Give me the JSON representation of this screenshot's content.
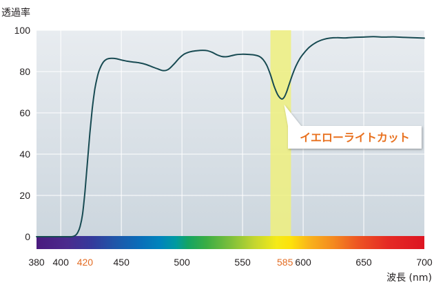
{
  "chart_data": {
    "type": "line",
    "ylabel": "透過率",
    "xlabel": "波長 (nm)",
    "xlim": [
      380,
      700
    ],
    "ylim": [
      0,
      100
    ],
    "x_ticks": [
      380,
      400,
      420,
      450,
      500,
      550,
      585,
      600,
      650,
      700
    ],
    "y_ticks": [
      0,
      20,
      40,
      60,
      80,
      100
    ],
    "highlighted_x_ticks": [
      420,
      585
    ],
    "grid": true,
    "x_gridlines": [
      400,
      450,
      500,
      550,
      600,
      650
    ],
    "y_gridlines": [
      20,
      40,
      60,
      80,
      100
    ],
    "x": [
      380,
      390,
      400,
      405,
      409,
      412,
      414,
      416,
      418,
      420,
      422,
      424,
      426,
      428,
      430,
      432,
      435,
      438,
      442,
      446,
      450,
      455,
      460,
      465,
      470,
      475,
      480,
      484,
      487,
      490,
      494,
      498,
      502,
      507,
      512,
      517,
      521,
      525,
      529,
      533,
      537,
      541,
      545,
      550,
      555,
      560,
      564,
      567,
      570,
      573,
      576,
      579,
      582,
      584,
      586,
      588,
      591,
      594,
      597,
      600,
      604,
      608,
      612,
      617,
      622,
      628,
      635,
      642,
      650,
      658,
      666,
      674,
      682,
      690,
      700
    ],
    "y": [
      0,
      0,
      0,
      0,
      0,
      0.6,
      2,
      5,
      11,
      22,
      36,
      50,
      62,
      71,
      77,
      81,
      84.5,
      86,
      86.4,
      86.2,
      85.6,
      85,
      84.6,
      84.2,
      83.5,
      82.4,
      81.3,
      80.5,
      80.6,
      81.6,
      84,
      86.6,
      88.5,
      89.6,
      90.1,
      90.3,
      90.1,
      89.3,
      88.1,
      87.3,
      87.2,
      87.7,
      88.2,
      88.4,
      88.3,
      88,
      87.3,
      85.8,
      83,
      78.5,
      73,
      68.8,
      66.8,
      67.3,
      69.6,
      73,
      78.2,
      82.6,
      86,
      88.5,
      91.2,
      93.1,
      94.5,
      95.6,
      96.2,
      96.4,
      96.3,
      96.6,
      96.7,
      96.9,
      96.7,
      96.8,
      96.6,
      96.4,
      96.2
    ],
    "highlight_band": {
      "x_range": [
        573,
        590
      ]
    },
    "annotation": {
      "text": "イエローライトカット",
      "x": 582,
      "y": 67
    },
    "spectrum_bar": {
      "x_range": [
        380,
        700
      ],
      "stops": [
        {
          "nm": 380,
          "color": "#4a1a7e"
        },
        {
          "nm": 405,
          "color": "#4b2a8d"
        },
        {
          "nm": 425,
          "color": "#35399b"
        },
        {
          "nm": 445,
          "color": "#1f56a9"
        },
        {
          "nm": 465,
          "color": "#0a6db9"
        },
        {
          "nm": 482,
          "color": "#0084bc"
        },
        {
          "nm": 495,
          "color": "#009aa0"
        },
        {
          "nm": 505,
          "color": "#14a463"
        },
        {
          "nm": 520,
          "color": "#3aad44"
        },
        {
          "nm": 540,
          "color": "#7dbf3b"
        },
        {
          "nm": 560,
          "color": "#c4d62f"
        },
        {
          "nm": 578,
          "color": "#f5ea17"
        },
        {
          "nm": 590,
          "color": "#fde10b"
        },
        {
          "nm": 605,
          "color": "#f9b31b"
        },
        {
          "nm": 625,
          "color": "#f4891f"
        },
        {
          "nm": 645,
          "color": "#ed5523"
        },
        {
          "nm": 670,
          "color": "#e52a24"
        },
        {
          "nm": 700,
          "color": "#dd1522"
        }
      ]
    }
  },
  "colors": {
    "curve": "#174a52",
    "plot_background_top": "#e8ecf0",
    "plot_background_bottom": "#ccd6de",
    "grid": "#ffffff",
    "highlight_band": "#eef07e",
    "highlighted_tick": "#e36c23",
    "annotation_text": "#e8701e",
    "annotation_box": "#ffffff",
    "text": "#231f20"
  }
}
